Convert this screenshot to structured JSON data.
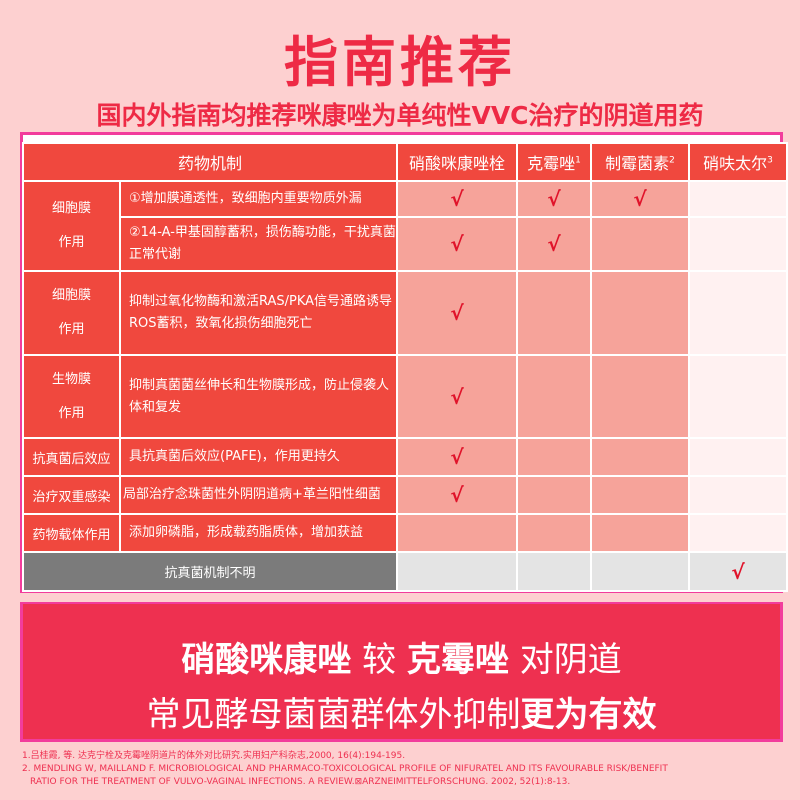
{
  "title": "指南推荐",
  "subtitle": "国内外指南均推荐咪康唑为单纯性VVC治疗的阴道用药",
  "table": {
    "header": {
      "mechanism": "药物机制",
      "drugs": [
        {
          "name": "硝酸咪康唑栓",
          "sup": ""
        },
        {
          "name": "克霉唑",
          "sup": "1"
        },
        {
          "name": "制霉菌素",
          "sup": "2"
        },
        {
          "name": "硝呋太尔",
          "sup": "3"
        }
      ]
    },
    "check": "√",
    "rows": [
      {
        "cat1": "细胞膜",
        "cat2": "作用",
        "desc": "①增加膜通透性，致细胞内重要物质外漏",
        "checks": [
          true,
          true,
          true,
          false
        ]
      },
      {
        "desc": "②14-A-甲基固醇蓄积，损伤酶功能，干扰真菌正常代谢",
        "checks": [
          true,
          true,
          false,
          false
        ]
      },
      {
        "cat1": "细胞膜",
        "cat2": "作用",
        "desc": "抑制过氧化物酶和激活RAS/PKA信号通路诱导ROS蓄积，致氧化损伤细胞死亡",
        "checks": [
          true,
          false,
          false,
          false
        ]
      },
      {
        "cat1": "生物膜",
        "cat2": "作用",
        "desc": "抑制真菌菌丝伸长和生物膜形成，防止侵袭人体和复发",
        "checks": [
          true,
          false,
          false,
          false
        ]
      },
      {
        "cat1": "抗真菌后效应",
        "desc": "具抗真菌后效应(PAFE)，作用更持久",
        "checks": [
          true,
          false,
          false,
          false
        ]
      },
      {
        "cat1": "治疗双重感染",
        "desc": "局部治疗念珠菌性外阴阴道病+革兰阳性细菌",
        "checks": [
          true,
          false,
          false,
          false
        ]
      },
      {
        "cat1": "药物载体作用",
        "desc": "添加卵磷脂，形成载药脂质体，增加获益",
        "checks": [
          false,
          false,
          false,
          false
        ]
      },
      {
        "desc": "抗真菌机制不明",
        "checks": [
          false,
          false,
          false,
          true
        ]
      }
    ]
  },
  "banner": {
    "l1a": "硝酸咪康唑",
    "l1b": " 较 ",
    "l1c": "克霉唑",
    "l1d": " 对阴道",
    "l2a": "常见酵母菌菌群体外抑制",
    "l2b": "更为有效"
  },
  "refs": [
    "1.吕桂霞, 等. 达克宁栓及克霉唑阴道片的体外对比研究.实用妇产科杂志,2000, 16(4):194-195.",
    "2. MENDLING W, MAILLAND F. MICROBIOLOGICAL AND PHARMACO-TOXICOLOGICAL PROFILE OF NIFURATEL AND ITS FAVOURABLE RISK/BENEFIT",
    "RATIO FOR THE TREATMENT OF VULVO-VAGINAL INFECTIONS. A REVIEW.⊠ARZNEIMITTELFORSCHUNG. 2002, 52(1):8-13."
  ],
  "colors": {
    "background": "#fdd0d0",
    "accent": "#ee2a45",
    "table_red": "#f0483e",
    "check": "#e0132a",
    "frame": "#f23c9c"
  }
}
